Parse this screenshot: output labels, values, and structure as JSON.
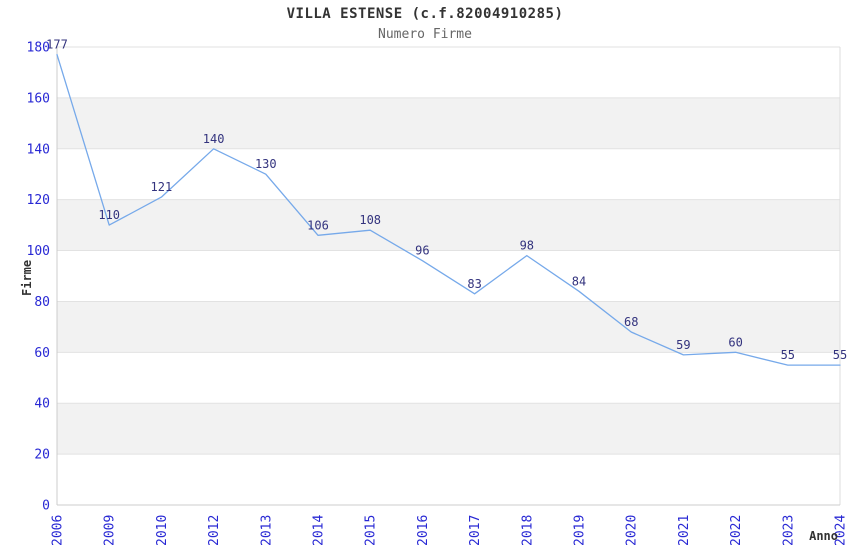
{
  "chart_data": {
    "type": "line",
    "title": "VILLA ESTENSE (c.f.82004910285)",
    "subtitle": "Numero Firme",
    "xlabel": "Anno",
    "ylabel": "Firme",
    "categories": [
      "2006",
      "2009",
      "2010",
      "2012",
      "2013",
      "2014",
      "2015",
      "2016",
      "2017",
      "2018",
      "2019",
      "2020",
      "2021",
      "2022",
      "2023",
      "2024"
    ],
    "values": [
      177,
      110,
      121,
      140,
      130,
      106,
      108,
      96,
      83,
      98,
      84,
      68,
      59,
      60,
      55,
      55
    ],
    "ylim": [
      0,
      180
    ],
    "ytick_step": 20,
    "yticks": [
      0,
      20,
      40,
      60,
      80,
      100,
      120,
      140,
      160,
      180
    ],
    "grid": true,
    "alternating_bands": true,
    "legend": "none",
    "data_labels_shown": true,
    "colors": {
      "line": "#76a9ea",
      "data_label": "#33337e",
      "tick_label": "#2828d4",
      "band": "#f2f2f2",
      "gridline": "#e2e2e2",
      "axis_line": "#cccccc",
      "right_border": "#dcdcdc",
      "title": "#333333",
      "subtitle": "#666666",
      "axis_title": "#333333"
    }
  }
}
